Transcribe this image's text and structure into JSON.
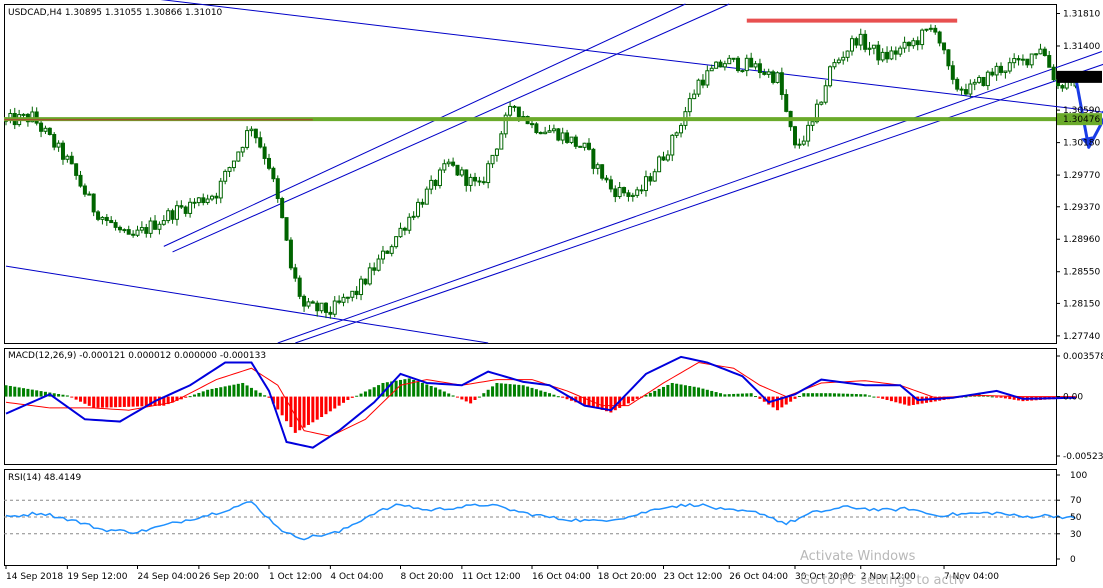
{
  "main_header": "USDCAD,H4  1.30895 1.31055 1.30866 1.31010",
  "macd_header": "MACD(12,26,9) -0.000121 0.000012 0.000000 -0.000133",
  "rsi_header": "RSI(14) 48.4149",
  "watermark": [
    "Activate Windows",
    "Go to PC settings to activ"
  ],
  "colors": {
    "bull": "#008000",
    "bear": "#ff0000",
    "support": "#6aaa2a",
    "resistance": "#e85050",
    "channel": "#0000c8",
    "arrow": "#1a3ce6",
    "rsi": "#1e90ff",
    "macd_line": "#0000dd",
    "signal_line": "#ff0000",
    "current_price_box": "#000000",
    "support_price_box": "#6aaa2a"
  },
  "chart_data": [
    {
      "type": "candlestick",
      "symbol": "USDCAD",
      "timeframe": "H4",
      "ohlc_last": {
        "open": 1.30895,
        "high": 1.31055,
        "low": 1.30866,
        "close": 1.3101
      },
      "ylim": [
        1.2765,
        1.3193
      ],
      "y_ticks": [
        "1.31810",
        "1.31400",
        "1.31010",
        "1.30590",
        "1.30180",
        "1.29770",
        "1.29370",
        "1.28960",
        "1.28550",
        "1.28150",
        "1.27740"
      ],
      "y_tick_values": [
        1.3181,
        1.314,
        1.3101,
        1.3059,
        1.3018,
        1.2977,
        1.2937,
        1.2896,
        1.2855,
        1.2815,
        1.2774
      ],
      "x_ticks": [
        "14 Sep 2018",
        "19 Sep 12:00",
        "24 Sep 04:00",
        "26 Sep 20:00",
        "1 Oct 12:00",
        "4 Oct 04:00",
        "8 Oct 20:00",
        "11 Oct 12:00",
        "16 Oct 04:00",
        "18 Oct 20:00",
        "23 Oct 12:00",
        "26 Oct 04:00",
        "30 Oct 20:00",
        "2 Nov 12:00",
        "7 Nov 04:00"
      ],
      "current_price_label": "1.31010",
      "support_price_label": "1.30476",
      "support_level": 1.30476,
      "resistance_level": 1.3172,
      "path_anchors": [
        [
          0,
          1.3045
        ],
        [
          6,
          1.305
        ],
        [
          14,
          1.2995
        ],
        [
          20,
          1.2935
        ],
        [
          28,
          1.2895
        ],
        [
          38,
          1.293
        ],
        [
          48,
          1.2955
        ],
        [
          56,
          1.304
        ],
        [
          60,
          1.299
        ],
        [
          63,
          1.292
        ],
        [
          65,
          1.286
        ],
        [
          68,
          1.281
        ],
        [
          74,
          1.2805
        ],
        [
          80,
          1.283
        ],
        [
          86,
          1.2875
        ],
        [
          94,
          1.294
        ],
        [
          101,
          1.299
        ],
        [
          108,
          1.296
        ],
        [
          114,
          1.3045
        ],
        [
          116,
          1.3065
        ],
        [
          120,
          1.304
        ],
        [
          126,
          1.303
        ],
        [
          132,
          1.301
        ],
        [
          138,
          1.296
        ],
        [
          144,
          1.295
        ],
        [
          152,
          1.302
        ],
        [
          158,
          1.3095
        ],
        [
          164,
          1.312
        ],
        [
          170,
          1.3115
        ],
        [
          176,
          1.31
        ],
        [
          180,
          1.301
        ],
        [
          184,
          1.304
        ],
        [
          188,
          1.311
        ],
        [
          194,
          1.315
        ],
        [
          200,
          1.3125
        ],
        [
          206,
          1.314
        ],
        [
          212,
          1.3165
        ],
        [
          216,
          1.309
        ],
        [
          220,
          1.3085
        ],
        [
          226,
          1.311
        ],
        [
          232,
          1.312
        ],
        [
          236,
          1.314
        ],
        [
          240,
          1.309
        ],
        [
          244,
          1.3101
        ]
      ],
      "forecast_path": [
        [
          1.3101
        ],
        [
          1.3012
        ],
        [
          1.3064
        ],
        [
          1.2937
        ]
      ]
    },
    {
      "type": "macd",
      "title": "MACD(12,26,9)",
      "values": [
        -0.000121,
        1.2e-05,
        0.0,
        -0.000133
      ],
      "ylim": [
        -0.005237,
        0.003578
      ],
      "y_ticks": [
        "0.003578",
        "0.00",
        "-0.005237"
      ],
      "hist_anchors": [
        [
          0,
          0.001
        ],
        [
          14,
          0.0001
        ],
        [
          20,
          -0.001
        ],
        [
          36,
          -0.0008
        ],
        [
          46,
          0.0006
        ],
        [
          54,
          0.0012
        ],
        [
          60,
          -0.0001
        ],
        [
          66,
          -0.0032
        ],
        [
          72,
          -0.0018
        ],
        [
          78,
          -0.0003
        ],
        [
          86,
          0.0012
        ],
        [
          92,
          0.0016
        ],
        [
          98,
          0.0008
        ],
        [
          106,
          -0.0006
        ],
        [
          112,
          0.0012
        ],
        [
          118,
          0.001
        ],
        [
          124,
          0.0003
        ],
        [
          130,
          -0.0005
        ],
        [
          138,
          -0.0014
        ],
        [
          144,
          -0.0002
        ],
        [
          152,
          0.0012
        ],
        [
          158,
          0.0008
        ],
        [
          164,
          0.0002
        ],
        [
          170,
          0.0003
        ],
        [
          176,
          -0.0012
        ],
        [
          182,
          0.0003
        ],
        [
          188,
          0.0003
        ],
        [
          196,
          0.0002
        ],
        [
          206,
          -0.0008
        ],
        [
          214,
          -0.0003
        ],
        [
          222,
          0.0002
        ],
        [
          232,
          -0.0004
        ],
        [
          244,
          -0.0001
        ]
      ],
      "main_anchors": [
        [
          0,
          -0.0015
        ],
        [
          10,
          0.0002
        ],
        [
          18,
          -0.002
        ],
        [
          26,
          -0.0022
        ],
        [
          34,
          -0.0004
        ],
        [
          42,
          0.001
        ],
        [
          50,
          0.003
        ],
        [
          56,
          0.003
        ],
        [
          60,
          0.0005
        ],
        [
          64,
          -0.004
        ],
        [
          70,
          -0.0045
        ],
        [
          76,
          -0.003
        ],
        [
          84,
          -0.0005
        ],
        [
          90,
          0.002
        ],
        [
          96,
          0.0012
        ],
        [
          104,
          0.001
        ],
        [
          110,
          0.0022
        ],
        [
          118,
          0.0013
        ],
        [
          124,
          0.001
        ],
        [
          132,
          -0.0008
        ],
        [
          138,
          -0.0012
        ],
        [
          146,
          0.002
        ],
        [
          154,
          0.0035
        ],
        [
          160,
          0.003
        ],
        [
          168,
          0.0018
        ],
        [
          174,
          -0.0005
        ],
        [
          180,
          0.0002
        ],
        [
          186,
          0.0015
        ],
        [
          196,
          0.001
        ],
        [
          204,
          0.001
        ],
        [
          208,
          -0.0003
        ],
        [
          216,
          -0.0001
        ],
        [
          226,
          0.0005
        ],
        [
          232,
          -0.0002
        ],
        [
          244,
          -0.0001
        ]
      ],
      "signal_anchors": [
        [
          0,
          -0.0005
        ],
        [
          10,
          -0.001
        ],
        [
          20,
          -0.001
        ],
        [
          28,
          -0.0012
        ],
        [
          38,
          -0.0005
        ],
        [
          48,
          0.0015
        ],
        [
          56,
          0.0025
        ],
        [
          62,
          0.001
        ],
        [
          68,
          -0.003
        ],
        [
          74,
          -0.0035
        ],
        [
          82,
          -0.002
        ],
        [
          90,
          0.001
        ],
        [
          96,
          0.0015
        ],
        [
          104,
          0.001
        ],
        [
          112,
          0.0015
        ],
        [
          120,
          0.0015
        ],
        [
          128,
          0.0005
        ],
        [
          136,
          -0.0008
        ],
        [
          142,
          -0.0008
        ],
        [
          150,
          0.0012
        ],
        [
          158,
          0.003
        ],
        [
          166,
          0.0025
        ],
        [
          172,
          0.001
        ],
        [
          178,
          0.0
        ],
        [
          186,
          0.0012
        ],
        [
          196,
          0.0014
        ],
        [
          204,
          0.001
        ],
        [
          212,
          -0.0001
        ],
        [
          222,
          0.0001
        ],
        [
          232,
          0.0
        ],
        [
          244,
          0.0
        ]
      ]
    },
    {
      "type": "line",
      "title": "RSI(14)",
      "value": 48.4149,
      "ylim": [
        0,
        100
      ],
      "y_ticks": [
        "100",
        "70",
        "50",
        "30",
        "0"
      ],
      "levels": [
        70,
        50,
        30
      ],
      "anchors": [
        [
          0,
          50
        ],
        [
          8,
          55
        ],
        [
          16,
          45
        ],
        [
          22,
          35
        ],
        [
          30,
          32
        ],
        [
          40,
          45
        ],
        [
          48,
          55
        ],
        [
          56,
          68
        ],
        [
          60,
          48
        ],
        [
          64,
          30
        ],
        [
          68,
          25
        ],
        [
          76,
          32
        ],
        [
          84,
          55
        ],
        [
          90,
          65
        ],
        [
          96,
          58
        ],
        [
          104,
          62
        ],
        [
          110,
          65
        ],
        [
          118,
          55
        ],
        [
          126,
          48
        ],
        [
          134,
          45
        ],
        [
          142,
          50
        ],
        [
          150,
          62
        ],
        [
          158,
          65
        ],
        [
          164,
          58
        ],
        [
          172,
          55
        ],
        [
          178,
          42
        ],
        [
          184,
          55
        ],
        [
          192,
          62
        ],
        [
          200,
          58
        ],
        [
          206,
          60
        ],
        [
          212,
          52
        ],
        [
          220,
          54
        ],
        [
          226,
          55
        ],
        [
          232,
          50
        ],
        [
          238,
          52
        ],
        [
          244,
          48.4
        ]
      ]
    }
  ]
}
